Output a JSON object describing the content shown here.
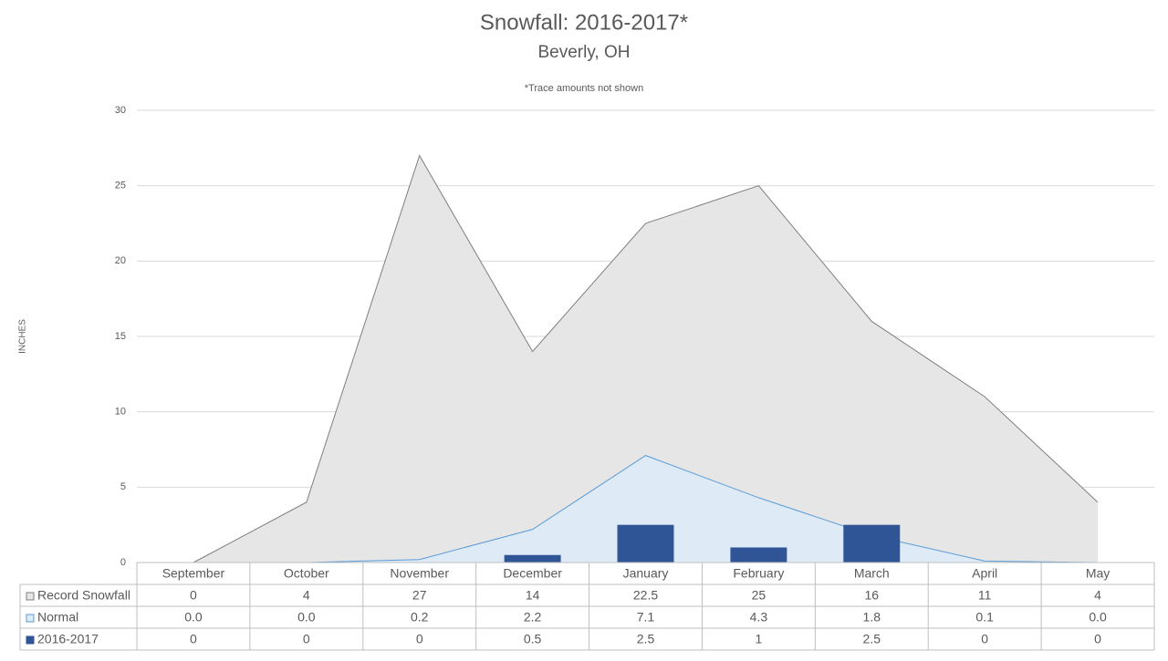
{
  "chart_data": {
    "type": "combo",
    "title": "Snowfall: 2016-2017*",
    "subtitle": "Beverly, OH",
    "annotation": "*Trace amounts not shown",
    "y_label": "INCHES",
    "categories": [
      "September",
      "October",
      "November",
      "December",
      "January",
      "February",
      "March",
      "April",
      "May"
    ],
    "series": [
      {
        "name": "Record Snowfall",
        "type": "area",
        "color": "#e7e6e6",
        "line_color": "#7f7f7f",
        "values": [
          0,
          4,
          27,
          14,
          22.5,
          25,
          16,
          11,
          4
        ]
      },
      {
        "name": "Normal",
        "type": "area",
        "color": "#deebf7",
        "line_color": "#5b9bd5",
        "values": [
          0,
          0,
          0.2,
          2.2,
          7.1,
          4.3,
          1.8,
          0.1,
          0
        ],
        "value_labels": [
          "0.0",
          "0.0",
          "0.2",
          "2.2",
          "7.1",
          "4.3",
          "1.8",
          "0.1",
          "0.0"
        ]
      },
      {
        "name": "2016-2017",
        "type": "bar",
        "color": "#2f5597",
        "values": [
          0,
          0,
          0,
          0.5,
          2.5,
          1,
          2.5,
          0,
          0
        ]
      }
    ],
    "ylim": [
      0,
      30
    ],
    "yticks": [
      0,
      5,
      10,
      15,
      20,
      25,
      30
    ],
    "grid": true,
    "legend": "data-table"
  }
}
